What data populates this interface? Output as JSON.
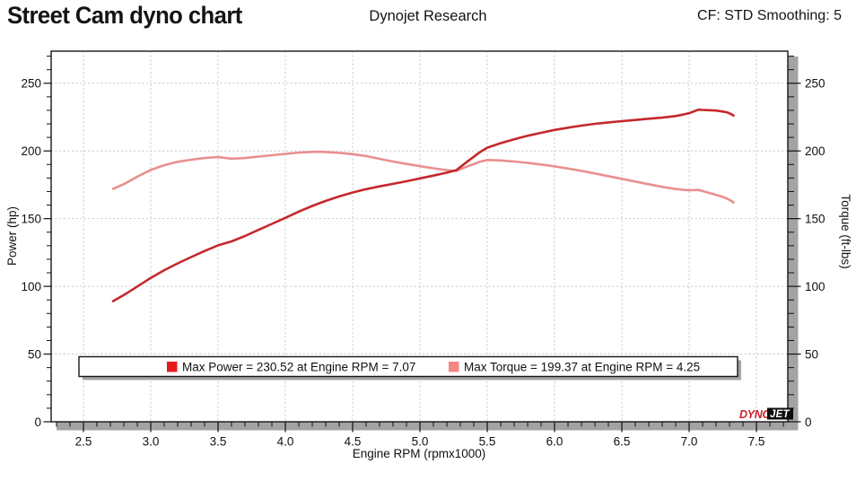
{
  "header": {
    "title": "Street Cam dyno chart",
    "subtitle": "Dynojet Research",
    "right_label": "CF: STD Smoothing: 5"
  },
  "logo": {
    "dyno": "DYNO",
    "jet": "JET"
  },
  "chart_data": {
    "type": "line",
    "title": "Street Cam dyno chart",
    "xlabel": "Engine RPM (rpmx1000)",
    "ylabel_left": "Power (hp)",
    "ylabel_right": "Torque (ft-lbs)",
    "xlim": [
      2.26,
      7.733
    ],
    "ylim": [
      0,
      273.7
    ],
    "grid": "major-dashed",
    "legend_position": "bottom-center",
    "xticks": {
      "values": [
        2.5,
        3.0,
        3.5,
        4.0,
        4.5,
        5.0,
        5.5,
        6.0,
        6.5,
        7.0,
        7.5
      ],
      "labels": [
        "2.5",
        "3.0",
        "3.5",
        "4.0",
        "4.5",
        "5.0",
        "5.5",
        "6.0",
        "6.5",
        "7.0",
        "7.5"
      ],
      "minor_step": 0.1
    },
    "yticks": {
      "values": [
        0,
        50,
        100,
        150,
        200,
        250
      ],
      "labels": [
        "0",
        "50",
        "100",
        "150",
        "200",
        "250"
      ],
      "minor_step": 10
    },
    "rpm": [
      2.72,
      2.8,
      2.9,
      3.0,
      3.1,
      3.2,
      3.3,
      3.4,
      3.5,
      3.6,
      3.7,
      3.8,
      3.9,
      4.0,
      4.1,
      4.2,
      4.25,
      4.3,
      4.4,
      4.5,
      4.6,
      4.7,
      4.8,
      4.9,
      5.0,
      5.1,
      5.2,
      5.27,
      5.35,
      5.45,
      5.5,
      5.6,
      5.7,
      5.8,
      5.9,
      6.0,
      6.1,
      6.2,
      6.3,
      6.4,
      6.5,
      6.6,
      6.7,
      6.8,
      6.9,
      6.95,
      7.0,
      7.07,
      7.1,
      7.15,
      7.2,
      7.25,
      7.28,
      7.31,
      7.33
    ],
    "series": [
      {
        "name": "Power (hp)",
        "color": "#c5282c",
        "axis": "left",
        "values": [
          89.1,
          93.6,
          99.9,
          106.2,
          111.9,
          117.0,
          121.6,
          126.1,
          130.3,
          133.2,
          137.2,
          141.7,
          146.1,
          150.6,
          155.2,
          159.4,
          161.3,
          163.1,
          166.4,
          169.3,
          171.8,
          173.8,
          175.7,
          177.6,
          179.7,
          181.8,
          184.0,
          185.8,
          192.0,
          199.4,
          202.4,
          205.8,
          208.6,
          211.2,
          213.4,
          215.5,
          217.2,
          218.7,
          220.0,
          221.1,
          222.0,
          222.9,
          223.8,
          224.6,
          225.8,
          226.8,
          227.9,
          230.5,
          230.3,
          230.1,
          229.8,
          229.1,
          228.6,
          227.3,
          226.1
        ]
      },
      {
        "name": "Torque (ft-lbs)",
        "color": "#e98f8f",
        "axis": "right",
        "values": [
          172.0,
          175.5,
          181.0,
          186.0,
          189.5,
          192.0,
          193.5,
          194.8,
          195.5,
          194.3,
          194.8,
          195.8,
          196.8,
          197.8,
          198.8,
          199.3,
          199.4,
          199.2,
          198.6,
          197.6,
          196.2,
          194.2,
          192.2,
          190.4,
          188.8,
          187.2,
          185.8,
          185.2,
          188.5,
          192.2,
          193.3,
          193.0,
          192.2,
          191.2,
          190.0,
          188.6,
          187.0,
          185.3,
          183.4,
          181.4,
          179.4,
          177.4,
          175.4,
          173.5,
          171.9,
          171.4,
          171.0,
          171.2,
          170.4,
          169.0,
          167.6,
          166.0,
          164.9,
          163.3,
          162.0
        ]
      }
    ],
    "legend": [
      {
        "label": "Max Power = 230.52 at Engine RPM = 7.07",
        "color": "#e51b1e"
      },
      {
        "label": "Max Torque = 199.37 at Engine RPM = 4.25",
        "color": "#f48686"
      }
    ],
    "max_power": {
      "value": "230.52",
      "rpm": "7.07"
    },
    "max_torque": {
      "value": "199.37",
      "rpm": "4.25"
    }
  }
}
